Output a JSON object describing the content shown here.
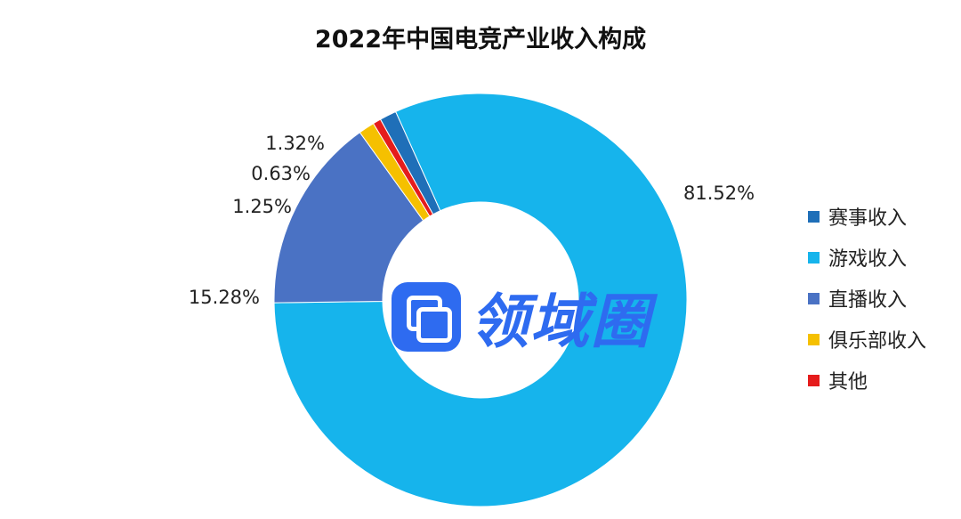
{
  "chart_data": {
    "type": "pie",
    "title": "2022年中国电竞产业收入构成",
    "categories": [
      "赛事收入",
      "游戏收入",
      "直播收入",
      "俱乐部收入",
      "其他"
    ],
    "values": [
      1.32,
      81.52,
      15.28,
      1.25,
      0.63
    ],
    "value_labels": [
      "1.32%",
      "81.52%",
      "15.28%",
      "1.25%",
      "0.63%"
    ],
    "colors": [
      "#1f6fb8",
      "#16b4ec",
      "#4a72c4",
      "#f5c000",
      "#e51c1c"
    ],
    "donut": true,
    "legend_position": "right"
  },
  "watermark": {
    "text": "领域圈"
  }
}
